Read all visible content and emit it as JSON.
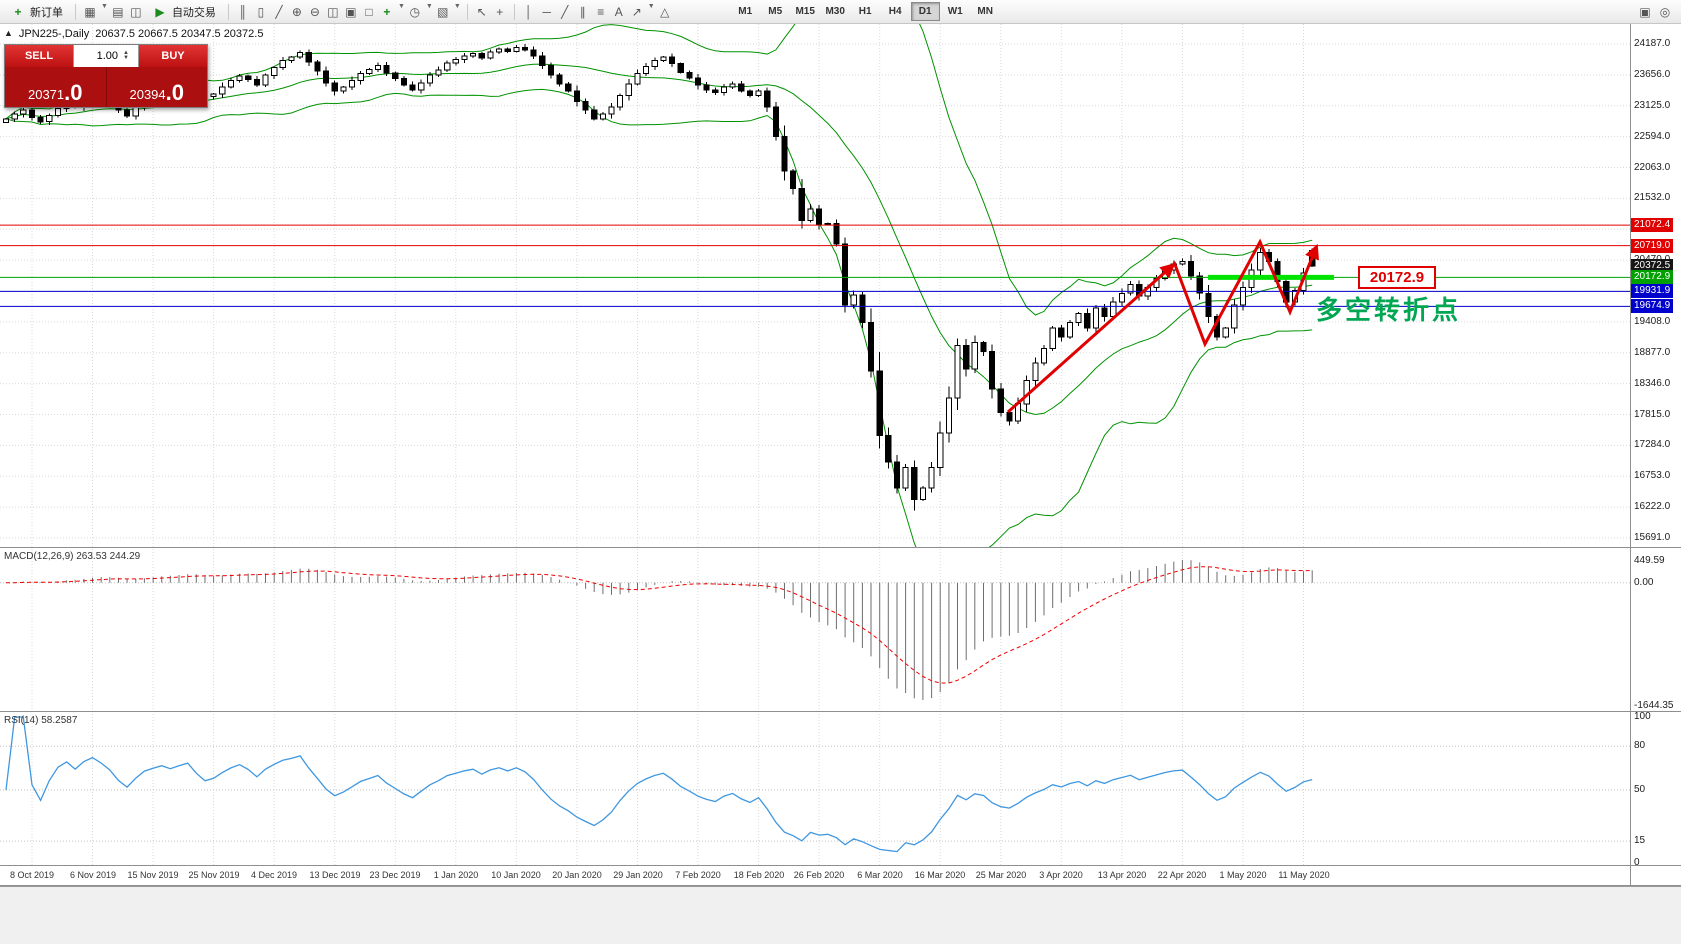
{
  "toolbar": {
    "new_order_label": "新订单",
    "autotrade_label": "自动交易",
    "left_icons": [
      "new-chart-icon",
      "profiles-icon",
      "market-watch-icon"
    ],
    "chart_icons": [
      "bar-chart-icon",
      "candlestick-chart-icon",
      "line-chart-icon",
      "zoom-in-icon",
      "zoom-out-icon",
      "tile-windows-icon",
      "cascade-windows-icon",
      "maximize-window-icon",
      "indicators-icon",
      "periods-icon",
      "templates-icon"
    ],
    "pointer_icons": [
      "cursor-icon",
      "crosshair-icon"
    ],
    "draw_icons": [
      "vertical-line-icon",
      "horizontal-line-icon",
      "trendline-icon",
      "channel-icon",
      "fibonacci-icon",
      "text-label-icon",
      "arrows-icon",
      "shapes-icon"
    ],
    "right_icons": [
      "print-icon",
      "print-preview-icon"
    ],
    "timeframes": [
      "M1",
      "M5",
      "M15",
      "M30",
      "H1",
      "H4",
      "D1",
      "W1",
      "MN"
    ],
    "active_timeframe": "D1"
  },
  "chart": {
    "collapse_icon": "▲",
    "title_symbol": "JPN225-,Daily",
    "title_ohlc": "20637.5 20667.5 20347.5 20372.5"
  },
  "one_click": {
    "sell_label": "SELL",
    "buy_label": "BUY",
    "volume": "1.00",
    "sell_price_main": "20371",
    "sell_price_frac": ".0",
    "buy_price_main": "20394",
    "buy_price_frac": ".0"
  },
  "price_axis": {
    "labels": [
      "24187.0",
      "23656.0",
      "23125.0",
      "22594.0",
      "22063.0",
      "21532.0",
      "21001.0",
      "20470.0",
      "19939.0",
      "19408.0",
      "18877.0",
      "18346.0",
      "17815.0",
      "17284.0",
      "16753.0",
      "16222.0",
      "15691.0"
    ]
  },
  "line_labels": [
    {
      "text": "21072.4",
      "price": 21072.4,
      "bg": "#e00000"
    },
    {
      "text": "20719.0",
      "price": 20719.0,
      "bg": "#e00000"
    },
    {
      "text": "20372.5",
      "price": 20372.5,
      "bg": "#161616"
    },
    {
      "text": "20172.9",
      "price": 20172.9,
      "bg": "#00a000"
    },
    {
      "text": "19931.9",
      "price": 19931.9,
      "bg": "#0000cc"
    },
    {
      "text": "19674.9",
      "price": 19674.9,
      "bg": "#0000cc"
    }
  ],
  "annotations": {
    "price_callout": "20172.9",
    "turning_point": "多空转折点"
  },
  "macd_panel": {
    "header": "MACD(12,26,9) 263.53 244.29",
    "axis": [
      "449.59",
      "0.00",
      "-1644.35"
    ]
  },
  "rsi_panel": {
    "header": "RSI(14) 58.2587",
    "axis": [
      "100",
      "80",
      "50",
      "15",
      "0"
    ],
    "levels": [
      80,
      50,
      15
    ]
  },
  "date_axis": [
    "8 Oct 2019",
    "6 Nov 2019",
    "15 Nov 2019",
    "25 Nov 2019",
    "4 Dec 2019",
    "13 Dec 2019",
    "23 Dec 2019",
    "1 Jan 2020",
    "10 Jan 2020",
    "20 Jan 2020",
    "29 Jan 2020",
    "7 Feb 2020",
    "18 Feb 2020",
    "26 Feb 2020",
    "6 Mar 2020",
    "16 Mar 2020",
    "25 Mar 2020",
    "3 Apr 2020",
    "13 Apr 2020",
    "22 Apr 2020",
    "1 May 2020",
    "11 May 2020"
  ],
  "chart_data": {
    "type": "candlestick",
    "symbol": "JPN225-",
    "timeframe": "Daily",
    "ohlc_current": {
      "open": 20637.5,
      "high": 20667.5,
      "low": 20347.5,
      "close": 20372.5
    },
    "y_axis": {
      "min": 15691,
      "max": 24187
    },
    "closes": [
      22900,
      22980,
      23050,
      22920,
      22850,
      22960,
      23080,
      23150,
      23100,
      23220,
      23300,
      23250,
      23180,
      23050,
      22950,
      23120,
      23280,
      23350,
      23420,
      23380,
      23450,
      23520,
      23390,
      23280,
      23330,
      23450,
      23560,
      23640,
      23580,
      23480,
      23650,
      23780,
      23900,
      23960,
      24040,
      23880,
      23720,
      23520,
      23380,
      23450,
      23560,
      23680,
      23750,
      23820,
      23690,
      23590,
      23480,
      23400,
      23520,
      23650,
      23740,
      23860,
      23920,
      23980,
      24020,
      23950,
      24050,
      24100,
      24060,
      24130,
      24080,
      23980,
      23820,
      23650,
      23500,
      23380,
      23200,
      23050,
      22900,
      22980,
      23100,
      23300,
      23500,
      23680,
      23800,
      23900,
      23960,
      23850,
      23700,
      23600,
      23480,
      23400,
      23350,
      23450,
      23500,
      23380,
      23300,
      23380,
      23100,
      22600,
      22000,
      21700,
      21150,
      21350,
      21080,
      21100,
      20750,
      19700,
      19870,
      19400,
      18560,
      17450,
      17000,
      16550,
      16900,
      16350,
      16550,
      16900,
      17500,
      18100,
      19000,
      18600,
      19050,
      18900,
      18250,
      17850,
      17700,
      18000,
      18400,
      18700,
      18950,
      19300,
      19150,
      19400,
      19550,
      19300,
      19650,
      19500,
      19750,
      19900,
      20050,
      19850,
      20000,
      20150,
      20300,
      20400,
      20450,
      20200,
      19900,
      19500,
      19150,
      19300,
      19700,
      20000,
      20300,
      20600,
      20450,
      20100,
      19750,
      19950,
      20250,
      20372.5
    ],
    "indicators": {
      "bollinger": {
        "period": 20,
        "deviation": 2,
        "color": "#009200"
      },
      "macd": {
        "fast": 12,
        "slow": 26,
        "signal": 9,
        "values": "263.53 244.29"
      },
      "rsi": {
        "period": 14,
        "value": 58.2587
      }
    },
    "hlines": [
      {
        "price": 21072.4,
        "color": "#e00000"
      },
      {
        "price": 20719.0,
        "color": "#e00000"
      },
      {
        "price": 20172.9,
        "color": "#00a000"
      },
      {
        "price": 19931.9,
        "color": "#0000cc"
      },
      {
        "price": 19674.9,
        "color": "#0000cc"
      }
    ],
    "highlight_segment": {
      "price": 20172.9,
      "color": "#00e400"
    }
  }
}
